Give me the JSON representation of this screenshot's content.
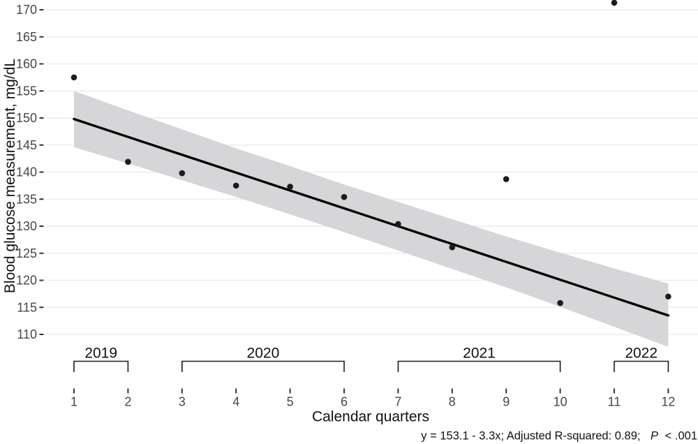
{
  "chart_data": {
    "type": "scatter",
    "title": "",
    "xlabel": "Calendar quarters",
    "ylabel": "Blood glucose measurement, mg/dL",
    "x": [
      1,
      2,
      3,
      4,
      5,
      6,
      7,
      8,
      9,
      10,
      11,
      12
    ],
    "y": [
      157.5,
      141.9,
      139.8,
      137.5,
      137.3,
      135.4,
      130.4,
      126.1,
      138.7,
      115.8,
      171.3,
      117.0
    ],
    "xticks": [
      1,
      2,
      3,
      4,
      5,
      6,
      7,
      8,
      9,
      10,
      11,
      12
    ],
    "yticks": [
      110,
      115,
      120,
      125,
      130,
      135,
      140,
      145,
      150,
      155,
      160,
      165,
      170
    ],
    "xlim": [
      0.5,
      12.55
    ],
    "ylim": [
      106.5,
      171.8
    ],
    "grid": "horizontal-only",
    "legend": "none",
    "regression": {
      "equation": "y = 153.1 - 3.3x",
      "intercept": 153.1,
      "slope": -3.3,
      "adjusted_r_squared": 0.89,
      "p_value": "P < .001",
      "x_start": 1,
      "x_end": 12
    },
    "ci_band": {
      "x": [
        1,
        2,
        3,
        4,
        5,
        6,
        7,
        8,
        9,
        10,
        11,
        12
      ],
      "upper": [
        155.0,
        151.4,
        147.9,
        144.4,
        141.1,
        137.7,
        134.5,
        131.3,
        128.1,
        125.1,
        122.2,
        119.4
      ],
      "lower": [
        144.6,
        141.6,
        138.5,
        135.4,
        132.2,
        128.9,
        125.5,
        122.1,
        118.7,
        115.1,
        111.4,
        107.7
      ]
    },
    "year_groups": [
      {
        "label": "2019",
        "from": 1,
        "to": 2
      },
      {
        "label": "2020",
        "from": 3,
        "to": 6
      },
      {
        "label": "2021",
        "from": 7,
        "to": 10
      },
      {
        "label": "2022",
        "from": 11,
        "to": 12
      }
    ],
    "annotation": {
      "prefix": "y = 153.1 - 3.3x; Adjusted R-squared: 0.89;",
      "p_italic": "P",
      "p_rest": "< .001"
    }
  },
  "colors": {
    "point": "#1c1c1c",
    "line": "#000000",
    "band": "#d6d5d8",
    "grid": "#ececec",
    "tick": "#333333",
    "tick_label": "#464646",
    "axis_title": "#111111",
    "bracket": "#1a1a1a"
  }
}
